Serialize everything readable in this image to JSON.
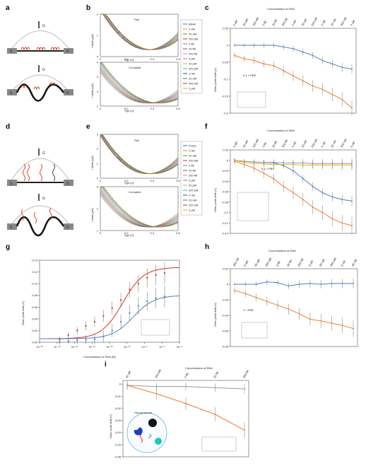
{
  "panels": {
    "a": {
      "letter": "a",
      "gate": "G",
      "source": "S",
      "drain": "D"
    },
    "b": {
      "letter": "b",
      "top_title": "Flat",
      "bottom_title": "Crumpled",
      "ylabel": "I drain (μA)",
      "xlabel": "Vgs (V)",
      "top_yticks": [
        "0",
        "1",
        "2"
      ],
      "bottom_yticks": [
        "1",
        "2",
        "3",
        "4"
      ],
      "xticks": [
        "0",
        "0.2",
        "0.4",
        "0.6"
      ],
      "legend": [
        "Blank",
        "2 aM",
        "20 aM",
        "200 aM",
        "2 fM",
        "20 fM",
        "200 fM",
        "2 pM",
        "20 pM",
        "200 pM",
        "2 nM",
        "20 nM",
        "200 nM",
        "2 µM"
      ]
    },
    "c": {
      "letter": "c",
      "title": "Concentration of DNA",
      "top_ticks": [
        "2 aM",
        "20 aM",
        "200 aM",
        "2 fM",
        "20 fM",
        "200 fM",
        "2 pM",
        "20 pM",
        "200 pM",
        "2 nM",
        "20 nM",
        "200 nM",
        "2 µM"
      ],
      "ylabel": "Dirac point shift (V)",
      "yticks": [
        "0.05",
        "0",
        "-0.05",
        "-0.1",
        "-0.15",
        "-0.2"
      ],
      "annotation": "0.1 × PBS",
      "legend": [
        "Crumpled",
        "Flat"
      ]
    },
    "d": {
      "letter": "d",
      "gate": "G",
      "source": "S",
      "drain": "D"
    },
    "e": {
      "letter": "e",
      "top_title": "Flat",
      "bottom_title": "Crumpled",
      "ylabel": "I drain (μA)",
      "xlabel": "Vgs (V)",
      "top_yticks": [
        "0",
        "1",
        "2",
        "3"
      ],
      "bottom_yticks": [
        "1",
        "2",
        "3"
      ],
      "xticks": [
        "0",
        "0.2",
        "0.4",
        "0.6"
      ],
      "legend": [
        "Probe",
        "2 aM",
        "20 aM",
        "200 aM",
        "2 fM",
        "20 fM",
        "200 fM",
        "2 pM",
        "20 pM",
        "200 pM",
        "2 nM",
        "20 nM",
        "200 nM",
        "2 µM"
      ]
    },
    "f": {
      "letter": "f",
      "title": "Concentration of DNA",
      "top_ticks": [
        "2 aM",
        "20 aM",
        "200 aM",
        "2 fM",
        "20 fM",
        "200 fM",
        "2 pM",
        "20 pM",
        "200 pM",
        "2 nM",
        "20 nM",
        "200 nM",
        "2 µM"
      ],
      "ylabel": "Dirac point shift (V)",
      "yticks": [
        "0.02",
        "0",
        "-0.02",
        "-0.04",
        "-0.06",
        "-0.08",
        "-0.1",
        "-0.12",
        "-0.14"
      ],
      "annotation": "0.1 × PBS",
      "legend": [
        "Crumpled",
        "Flat",
        "NC—crumpled",
        "NC—flat"
      ]
    },
    "g": {
      "letter": "g",
      "ylabel": "Dirac point shift (V)",
      "xlabel": "Concentration of DNA (M)",
      "yticks": [
        "0.00",
        "0.02",
        "0.04",
        "0.06",
        "0.08",
        "0.10",
        "0.12",
        "0.14"
      ],
      "xticks": [
        "10⁻²⁰",
        "10⁻¹⁸",
        "10⁻¹⁶",
        "10⁻¹⁴",
        "10⁻¹²",
        "10⁻¹⁰",
        "10⁻⁸",
        "10⁻⁶",
        "10⁻⁴"
      ],
      "legend": [
        "Crumpled",
        "Flat"
      ]
    },
    "h": {
      "letter": "h",
      "title": "Concentration of DNA",
      "top_ticks": [
        "600 zM",
        "6 aM",
        "60 aM",
        "600 aM",
        "6 fM",
        "60 fM",
        "600 fM",
        "6 pM",
        "60 pM",
        "600 pM",
        "6 nM",
        "60 nM"
      ],
      "ylabel": "Dirac point shift (V)",
      "yticks": [
        "0.02",
        "0",
        "-0.02",
        "-0.04",
        "-0.06",
        "-0.08"
      ],
      "annotation": "1 × PBS",
      "legend": [
        "Crumpled",
        "NC"
      ]
    },
    "i": {
      "letter": "i",
      "title": "Concentration of RNA",
      "top_ticks": [
        "20 aM",
        "200 aM",
        "2 fM",
        "20 fM",
        "200 fM"
      ],
      "ylabel": "Dirac point shift (V)",
      "yticks": [
        "0",
        "-0.01",
        "-0.02",
        "-0.03",
        "-0.04",
        "-0.05",
        "-0.06"
      ],
      "inset_label": "Human serum",
      "legend": [
        "Let-7b",
        "miRNA-21 (NC)"
      ]
    }
  },
  "colors": {
    "orange": "#ee7a2f",
    "blue": "#4f7fc0",
    "gray": "#9a9a9a",
    "yellow": "#e0b020",
    "red": "#d9321e"
  },
  "chart_data": [
    {
      "type": "line",
      "id": "c",
      "categories": [
        "2 aM",
        "20 aM",
        "200 aM",
        "2 fM",
        "20 fM",
        "200 fM",
        "2 pM",
        "20 pM",
        "200 pM",
        "2 nM",
        "20 nM",
        "200 nM",
        "2 µM"
      ],
      "series": [
        {
          "name": "Crumpled",
          "values": [
            -0.03,
            -0.04,
            -0.045,
            -0.055,
            -0.06,
            -0.075,
            -0.09,
            -0.105,
            -0.12,
            -0.13,
            -0.145,
            -0.16,
            -0.185
          ]
        },
        {
          "name": "Flat",
          "values": [
            0.0,
            0.0,
            0.0,
            0.0,
            0.0,
            -0.005,
            -0.01,
            -0.02,
            -0.03,
            -0.045,
            -0.055,
            -0.065,
            -0.07
          ]
        }
      ],
      "ylim": [
        -0.2,
        0.05
      ]
    },
    {
      "type": "line",
      "id": "f",
      "categories": [
        "2 aM",
        "20 aM",
        "200 aM",
        "2 fM",
        "20 fM",
        "200 fM",
        "2 pM",
        "20 pM",
        "200 pM",
        "2 nM",
        "20 nM",
        "200 nM",
        "2 µM"
      ],
      "series": [
        {
          "name": "Crumpled",
          "values": [
            -0.002,
            -0.008,
            -0.015,
            -0.025,
            -0.035,
            -0.05,
            -0.062,
            -0.075,
            -0.09,
            -0.1,
            -0.112,
            -0.12,
            -0.125
          ]
        },
        {
          "name": "Flat",
          "values": [
            0.0,
            -0.002,
            -0.003,
            -0.004,
            -0.005,
            -0.01,
            -0.02,
            -0.035,
            -0.05,
            -0.062,
            -0.07,
            -0.075,
            -0.078
          ]
        },
        {
          "name": "NC—crumpled",
          "values": [
            0.0,
            -0.002,
            -0.003,
            -0.004,
            -0.004,
            -0.005,
            -0.005,
            -0.005,
            -0.006,
            -0.006,
            -0.006,
            -0.006,
            -0.006
          ]
        },
        {
          "name": "NC—flat",
          "values": [
            0.0,
            -0.004,
            -0.006,
            -0.007,
            -0.008,
            -0.008,
            -0.008,
            -0.009,
            -0.009,
            -0.009,
            -0.009,
            -0.009,
            -0.009
          ]
        }
      ],
      "ylim": [
        -0.14,
        0.02
      ]
    },
    {
      "type": "scatter",
      "id": "g",
      "series": [
        {
          "name": "Crumpled",
          "x": [
            -17.7,
            -16.7,
            -15.7,
            -14.7,
            -13.7,
            -12.7,
            -11.7,
            -10.7,
            -9.7,
            -8.7,
            -7.7,
            -6.7,
            -5.7
          ],
          "y": [
            0.005,
            0.012,
            0.02,
            0.028,
            0.035,
            0.045,
            0.058,
            0.072,
            0.09,
            0.1,
            0.11,
            0.115,
            0.118
          ]
        },
        {
          "name": "Flat",
          "x": [
            -17.7,
            -16.7,
            -15.7,
            -14.7,
            -13.7,
            -12.7,
            -11.7,
            -10.7,
            -9.7,
            -8.7,
            -7.7,
            -6.7,
            -5.7
          ],
          "y": [
            0.0,
            0.002,
            0.003,
            0.004,
            0.005,
            0.01,
            0.02,
            0.035,
            0.05,
            0.062,
            0.07,
            0.075,
            0.078
          ]
        }
      ],
      "xlim": [
        -20,
        -4
      ],
      "ylim": [
        0,
        0.14
      ]
    },
    {
      "type": "line",
      "id": "h",
      "categories": [
        "600 zM",
        "6 aM",
        "60 aM",
        "600 aM",
        "6 fM",
        "60 fM",
        "600 fM",
        "6 pM",
        "60 pM",
        "600 pM",
        "6 nM",
        "60 nM"
      ],
      "series": [
        {
          "name": "Crumpled",
          "values": [
            -0.008,
            -0.012,
            -0.017,
            -0.022,
            -0.027,
            -0.032,
            -0.038,
            -0.045,
            -0.047,
            -0.05,
            -0.053,
            -0.057
          ]
        },
        {
          "name": "NC",
          "values": [
            0.0,
            0.0,
            0.0,
            0.003,
            0.002,
            -0.002,
            0.0,
            0.001,
            0.0,
            0.001,
            0.001,
            0.001
          ]
        }
      ],
      "ylim": [
        -0.08,
        0.02
      ]
    },
    {
      "type": "line",
      "id": "i",
      "categories": [
        "20 aM",
        "200 aM",
        "2 fM",
        "20 fM",
        "200 fM"
      ],
      "series": [
        {
          "name": "Let-7b",
          "values": [
            -0.001,
            -0.008,
            -0.016,
            -0.025,
            -0.038
          ]
        },
        {
          "name": "miRNA-21 (NC)",
          "values": [
            -0.001,
            -0.002,
            -0.002,
            -0.003,
            -0.004
          ]
        }
      ],
      "ylim": [
        -0.06,
        0.003
      ]
    }
  ]
}
